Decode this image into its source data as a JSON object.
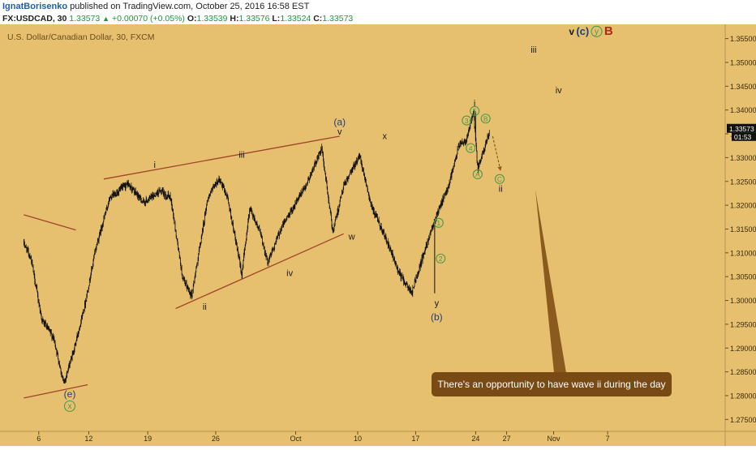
{
  "header": {
    "author": "IgnatBorisenko",
    "published": "published on TradingView.com, October 25, 2016 16:58 EST",
    "symbol": "FX:USDCAD, 30",
    "last": "1.33573",
    "change": "+0.00070 (+0.05%)",
    "o_label": "O:",
    "o_value": "1.33539",
    "h_label": "H:",
    "h_value": "1.33576",
    "l_label": "L:",
    "l_value": "1.33524",
    "c_label": "C:",
    "c_value": "1.33573"
  },
  "legend_text": "U.S. Dollar/Canadian Dollar, 30, FXCM",
  "callout_text": "There's an opportunity to have wave ii during the day",
  "colors": {
    "background": "#e6c06f",
    "candles": "#111111",
    "trendline": "#a0442a",
    "arrow": "#8b5a1e",
    "circle_green": "#4a9a4a",
    "label_blue": "#1f3f7a",
    "label_red": "#b02a1a",
    "price_tag": "#111111"
  },
  "price_tag": {
    "price": "1.33573",
    "timer": "01:53"
  },
  "chart_data": {
    "type": "candlestick",
    "ylim": [
      1.2725,
      1.358
    ],
    "y_ticks": [
      "1.35500",
      "1.35000",
      "1.34500",
      "1.34000",
      "1.33500",
      "1.33000",
      "1.32500",
      "1.32000",
      "1.31500",
      "1.31000",
      "1.30500",
      "1.30000",
      "1.29500",
      "1.29000",
      "1.28500",
      "1.28000",
      "1.27500"
    ],
    "x_ticks": [
      "6",
      "12",
      "19",
      "26",
      "Oct",
      "10",
      "17",
      "24",
      "27",
      "Nov",
      "7"
    ],
    "price_path": [
      {
        "t": 0.0,
        "v": 1.312
      },
      {
        "t": 0.35,
        "v": 1.309
      },
      {
        "t": 0.9,
        "v": 1.296
      },
      {
        "t": 1.5,
        "v": 1.292
      },
      {
        "t": 2.0,
        "v": 1.2825
      },
      {
        "t": 2.5,
        "v": 1.2895
      },
      {
        "t": 3.1,
        "v": 1.3
      },
      {
        "t": 3.6,
        "v": 1.311
      },
      {
        "t": 4.3,
        "v": 1.3215
      },
      {
        "t": 5.2,
        "v": 1.3245
      },
      {
        "t": 6.0,
        "v": 1.3205
      },
      {
        "t": 6.8,
        "v": 1.323
      },
      {
        "t": 7.35,
        "v": 1.3215
      },
      {
        "t": 7.95,
        "v": 1.3045
      },
      {
        "t": 8.4,
        "v": 1.301
      },
      {
        "t": 9.2,
        "v": 1.3215
      },
      {
        "t": 9.75,
        "v": 1.3255
      },
      {
        "t": 10.2,
        "v": 1.3215
      },
      {
        "t": 10.9,
        "v": 1.3055
      },
      {
        "t": 11.3,
        "v": 1.3195
      },
      {
        "t": 11.8,
        "v": 1.3145
      },
      {
        "t": 12.2,
        "v": 1.308
      },
      {
        "t": 12.9,
        "v": 1.3155
      },
      {
        "t": 14.1,
        "v": 1.324
      },
      {
        "t": 14.9,
        "v": 1.332
      },
      {
        "t": 15.45,
        "v": 1.3145
      },
      {
        "t": 16.0,
        "v": 1.324
      },
      {
        "t": 16.8,
        "v": 1.3305
      },
      {
        "t": 17.4,
        "v": 1.3195
      },
      {
        "t": 17.95,
        "v": 1.3145
      },
      {
        "t": 18.8,
        "v": 1.3055
      },
      {
        "t": 19.4,
        "v": 1.3015
      },
      {
        "t": 19.9,
        "v": 1.3085
      },
      {
        "t": 20.5,
        "v": 1.3165
      },
      {
        "t": 21.2,
        "v": 1.3235
      },
      {
        "t": 21.8,
        "v": 1.333
      },
      {
        "t": 22.1,
        "v": 1.3335
      },
      {
        "t": 22.5,
        "v": 1.3395
      },
      {
        "t": 22.7,
        "v": 1.3275
      },
      {
        "t": 23.3,
        "v": 1.3355
      }
    ],
    "trendlines": [
      {
        "name": "upper-triangle-line",
        "from": {
          "t": 4.0,
          "v": 1.3255
        },
        "to": {
          "t": 15.8,
          "v": 1.3345
        }
      },
      {
        "name": "lower-triangle-line",
        "from": {
          "t": 7.6,
          "v": 1.2983
        },
        "to": {
          "t": 16.0,
          "v": 1.314
        }
      },
      {
        "name": "left-line-upper",
        "from": {
          "t": 0.0,
          "v": 1.318
        },
        "to": {
          "t": 2.6,
          "v": 1.3148
        }
      },
      {
        "name": "left-line-lower",
        "from": {
          "t": 0.0,
          "v": 1.2795
        },
        "to": {
          "t": 3.2,
          "v": 1.2823
        }
      }
    ],
    "wave_labels": [
      {
        "text": "i",
        "t": 6.55,
        "v": 1.3285,
        "style": "plain"
      },
      {
        "text": "ii",
        "t": 9.05,
        "v": 1.2987,
        "style": "plain"
      },
      {
        "text": "iii",
        "t": 10.9,
        "v": 1.3307,
        "style": "plain"
      },
      {
        "text": "iv",
        "t": 13.3,
        "v": 1.3058,
        "style": "plain"
      },
      {
        "text": "v",
        "t": 15.8,
        "v": 1.3355,
        "style": "plain"
      },
      {
        "text": "(a)",
        "t": 15.8,
        "v": 1.3375,
        "style": "blue"
      },
      {
        "text": "w",
        "t": 16.4,
        "v": 1.3135,
        "style": "plain"
      },
      {
        "text": "x",
        "t": 18.05,
        "v": 1.3346,
        "style": "plain"
      },
      {
        "text": "y",
        "t": 20.65,
        "v": 1.2995,
        "style": "plain"
      },
      {
        "text": "(b)",
        "t": 20.65,
        "v": 1.2965,
        "style": "blue"
      },
      {
        "text": "(e)",
        "t": 2.3,
        "v": 1.2803,
        "style": "blue"
      },
      {
        "text": "i",
        "t": 22.55,
        "v": 1.3415,
        "style": "plain"
      },
      {
        "text": "ii",
        "t": 23.85,
        "v": 1.3235,
        "style": "plain"
      },
      {
        "text": "iii",
        "t": 25.5,
        "v": 1.3527,
        "style": "plain"
      },
      {
        "text": "iv",
        "t": 26.75,
        "v": 1.3442,
        "style": "plain"
      },
      {
        "text": "v",
        "t": 27.4,
        "v": 1.3565,
        "style": "plain"
      },
      {
        "text": "(c)",
        "t": 27.95,
        "v": 1.3565,
        "style": "blue"
      },
      {
        "text": "B",
        "t": 29.25,
        "v": 1.3565,
        "style": "red"
      }
    ],
    "circled_labels": [
      {
        "text": "x",
        "t": 2.3,
        "v": 1.2778
      },
      {
        "text": "y",
        "t": 28.65,
        "v": 1.3565
      },
      {
        "text": "1",
        "t": 20.75,
        "v": 1.3163
      },
      {
        "text": "2",
        "t": 20.85,
        "v": 1.3088
      },
      {
        "text": "3",
        "t": 22.15,
        "v": 1.3378
      },
      {
        "text": "4",
        "t": 22.35,
        "v": 1.332
      },
      {
        "text": "5",
        "t": 22.55,
        "v": 1.3398
      },
      {
        "text": "A",
        "t": 22.7,
        "v": 1.3265
      },
      {
        "text": "B",
        "t": 23.1,
        "v": 1.3382
      },
      {
        "text": "C",
        "t": 23.8,
        "v": 1.3255
      }
    ],
    "projection_arrow": {
      "from": {
        "t": 23.45,
        "v": 1.3345
      },
      "to": {
        "t": 23.85,
        "v": 1.3272
      }
    }
  }
}
